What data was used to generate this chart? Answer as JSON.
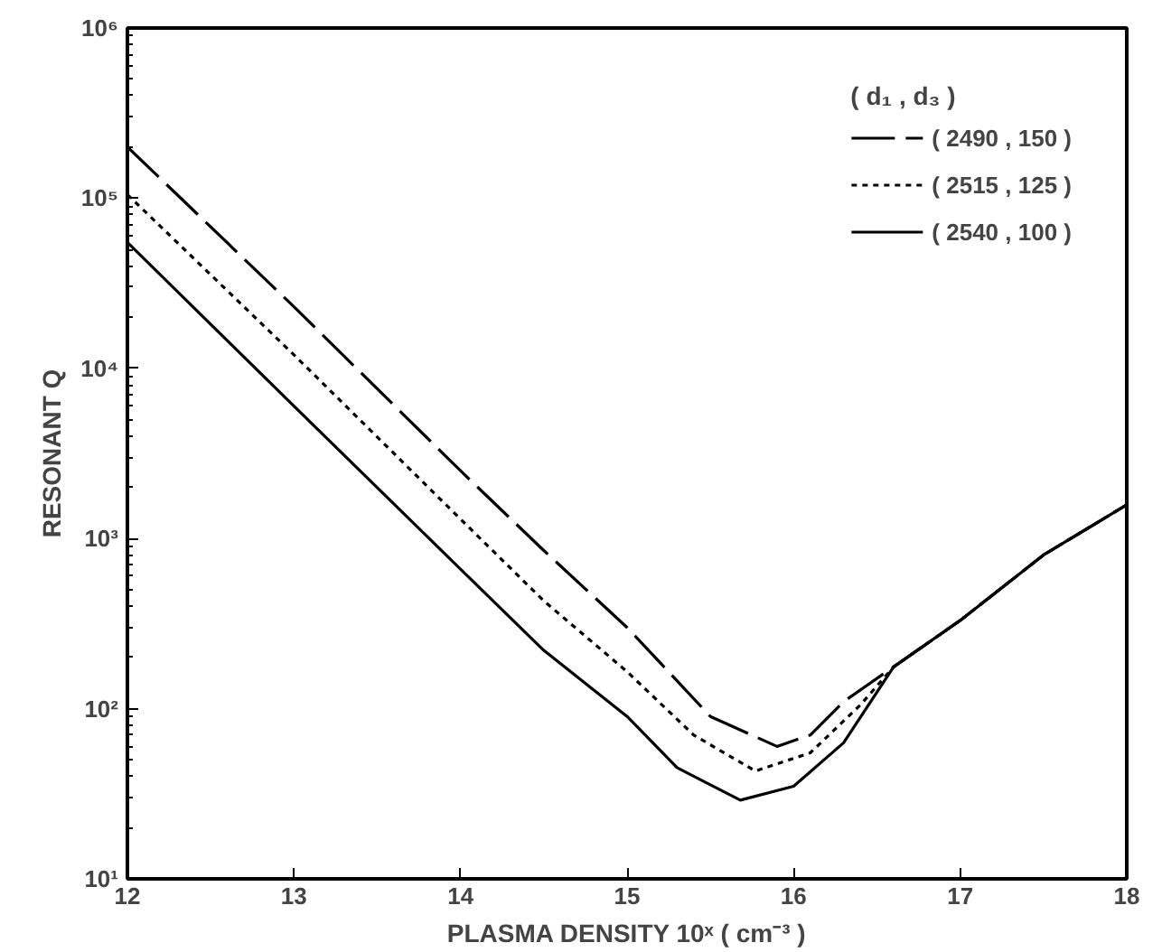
{
  "chart_data": {
    "type": "line",
    "xlabel": "PLASMA DENSITY 10ˣ ( cm⁻³ )",
    "ylabel": "RESONANT Q",
    "legend_title": "( d₁ , d₃ )",
    "legend": "top right",
    "log": "y",
    "grid": false,
    "xlim": [
      12,
      18
    ],
    "ylim": [
      10,
      1000000
    ],
    "xticks": [
      12,
      13,
      14,
      15,
      16,
      17,
      18
    ],
    "yticks": [
      {
        "value": 10,
        "label": "10¹"
      },
      {
        "value": 100,
        "label": "10²"
      },
      {
        "value": 1000,
        "label": "10³"
      },
      {
        "value": 10000,
        "label": "10⁴"
      },
      {
        "value": 100000,
        "label": "10⁵"
      },
      {
        "value": 1000000,
        "label": "10⁶"
      }
    ],
    "series": [
      {
        "name": "( 2490 , 150 )",
        "color": "#000000",
        "line_style": "dashed",
        "x": [
          12,
          13,
          14,
          14.5,
          15,
          15.5,
          15.9,
          16.1,
          16.3,
          16.6,
          17,
          17.5,
          18
        ],
        "values": [
          200000,
          23000,
          2500,
          850,
          300,
          90,
          60,
          70,
          110,
          176,
          330,
          800,
          1580
        ]
      },
      {
        "name": "( 2515 , 125 )",
        "color": "#000000",
        "line_style": "dotted",
        "x": [
          12,
          13,
          14,
          14.5,
          15,
          15.4,
          15.77,
          16.1,
          16.4,
          16.6,
          17,
          17.5,
          18
        ],
        "values": [
          105000,
          12000,
          1300,
          430,
          165,
          70,
          43,
          55,
          105,
          176,
          330,
          800,
          1580
        ]
      },
      {
        "name": "( 2540 , 100 )",
        "color": "#000000",
        "line_style": "solid",
        "x": [
          12,
          13,
          14,
          14.5,
          15,
          15.3,
          15.68,
          16,
          16.3,
          16.6,
          17,
          17.5,
          18
        ],
        "values": [
          55000,
          6000,
          660,
          220,
          90,
          45,
          29,
          35,
          63,
          176,
          330,
          800,
          1580
        ]
      }
    ]
  }
}
